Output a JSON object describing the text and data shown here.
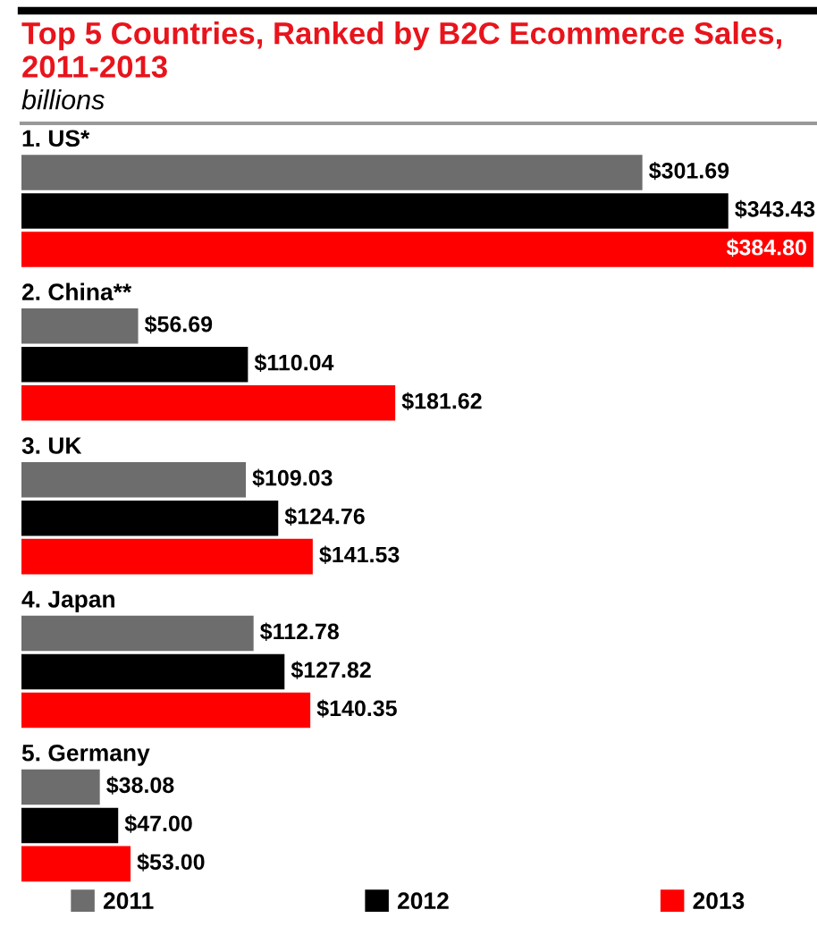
{
  "chart_data": {
    "type": "bar",
    "orientation": "horizontal",
    "title": "Top 5 Countries, Ranked by B2C Ecommerce Sales, 2011-2013",
    "subtitle": "billions",
    "categories": [
      "1. US*",
      "2. China**",
      "3. UK",
      "4. Japan",
      "5. Germany"
    ],
    "series": [
      {
        "name": "2011",
        "color": "#6d6d6d",
        "values": [
          301.69,
          56.69,
          109.03,
          112.78,
          38.08
        ],
        "value_labels": [
          "$301.69",
          "$56.69",
          "$109.03",
          "$112.78",
          "$38.08"
        ]
      },
      {
        "name": "2012",
        "color": "#000000",
        "values": [
          343.43,
          110.04,
          124.76,
          127.82,
          47.0
        ],
        "value_labels": [
          "$343.43",
          "$110.04",
          "$124.76",
          "$127.82",
          "$47.00"
        ]
      },
      {
        "name": "2013",
        "color": "#ff0000",
        "values": [
          384.8,
          181.62,
          141.53,
          140.35,
          53.0
        ],
        "value_labels": [
          "$384.80",
          "$181.62",
          "$141.53",
          "$140.35",
          "$53.00"
        ]
      }
    ],
    "legend": "bottom"
  }
}
